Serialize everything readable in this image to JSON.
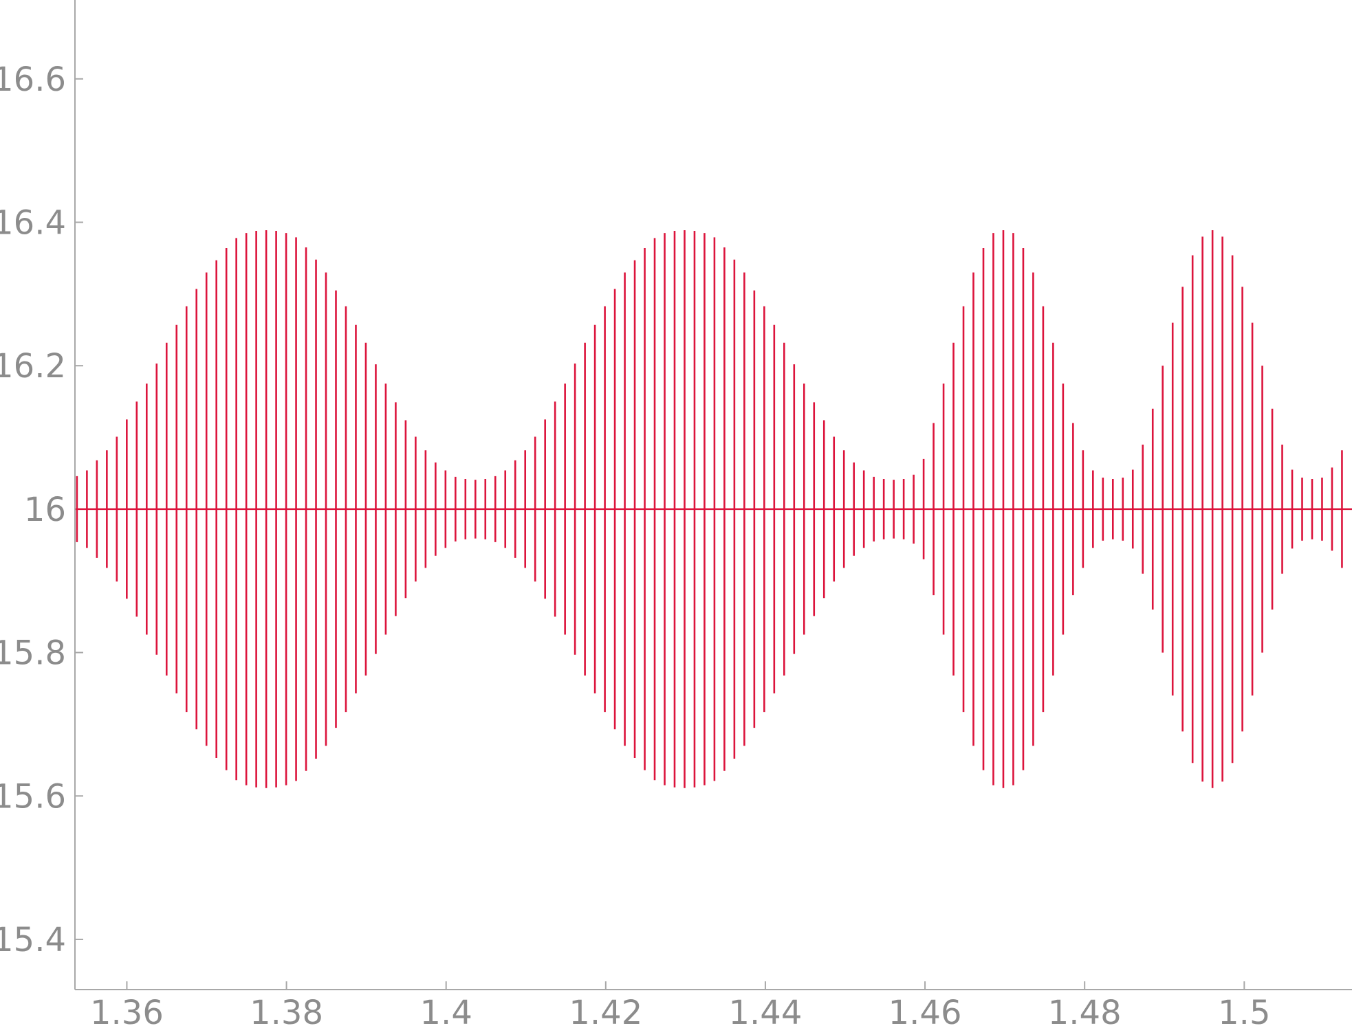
{
  "chart_data": {
    "type": "line",
    "title": "",
    "xlabel": "",
    "ylabel": "",
    "xlim": [
      1.3535,
      1.5135
    ],
    "ylim": [
      15.33,
      16.71
    ],
    "x_ticks": [
      {
        "value": 1.36,
        "label": "1.36"
      },
      {
        "value": 1.38,
        "label": "1.38"
      },
      {
        "value": 1.4,
        "label": "1.4"
      },
      {
        "value": 1.42,
        "label": "1.42"
      },
      {
        "value": 1.44,
        "label": "1.44"
      },
      {
        "value": 1.46,
        "label": "1.46"
      },
      {
        "value": 1.48,
        "label": "1.48"
      },
      {
        "value": 1.5,
        "label": "1.5"
      }
    ],
    "y_ticks": [
      {
        "value": 15.4,
        "label": "15.4"
      },
      {
        "value": 15.6,
        "label": "15.6"
      },
      {
        "value": 15.8,
        "label": "15.8"
      },
      {
        "value": 16.0,
        "label": "16"
      },
      {
        "value": 16.2,
        "label": "16.2"
      },
      {
        "value": 16.4,
        "label": "16.4"
      },
      {
        "value": 16.6,
        "label": "16.6"
      }
    ],
    "grid": false,
    "legend": "none",
    "series_color": "#dc143c",
    "axis_color": "#a8a8a8",
    "tick_label_color": "#8c8c8c",
    "series": [
      {
        "style": "stem",
        "baseline": 16.0,
        "x_start": 1.35375,
        "x_step": 0.001248,
        "count": 128,
        "offset_amplitude": [
          0.046,
          0.054,
          0.068,
          0.082,
          0.101,
          0.125,
          0.15,
          0.175,
          0.203,
          0.232,
          0.257,
          0.283,
          0.307,
          0.33,
          0.347,
          0.364,
          0.378,
          0.385,
          0.388,
          0.389,
          0.388,
          0.385,
          0.379,
          0.365,
          0.348,
          0.33,
          0.305,
          0.283,
          0.257,
          0.232,
          0.202,
          0.175,
          0.149,
          0.124,
          0.101,
          0.082,
          0.065,
          0.054,
          0.045,
          0.042,
          0.041,
          0.042,
          0.046,
          0.054,
          0.068,
          0.082,
          0.101,
          0.125,
          0.15,
          0.175,
          0.203,
          0.232,
          0.257,
          0.283,
          0.307,
          0.33,
          0.347,
          0.364,
          0.378,
          0.385,
          0.388,
          0.389,
          0.388,
          0.385,
          0.379,
          0.365,
          0.348,
          0.33,
          0.305,
          0.283,
          0.257,
          0.232,
          0.202,
          0.175,
          0.149,
          0.124,
          0.101,
          0.082,
          0.065,
          0.054,
          0.045,
          0.042,
          0.041,
          0.042,
          0.048,
          0.07,
          0.12,
          0.175,
          0.232,
          0.283,
          0.33,
          0.364,
          0.385,
          0.389,
          0.385,
          0.364,
          0.33,
          0.283,
          0.232,
          0.175,
          0.12,
          0.082,
          0.054,
          0.044,
          0.042,
          0.044,
          0.055,
          0.09,
          0.14,
          0.2,
          0.26,
          0.31,
          0.354,
          0.38,
          0.389,
          0.38,
          0.354,
          0.31,
          0.26,
          0.2,
          0.14,
          0.09,
          0.055,
          0.044,
          0.042,
          0.044,
          0.058,
          0.082
        ]
      }
    ]
  }
}
